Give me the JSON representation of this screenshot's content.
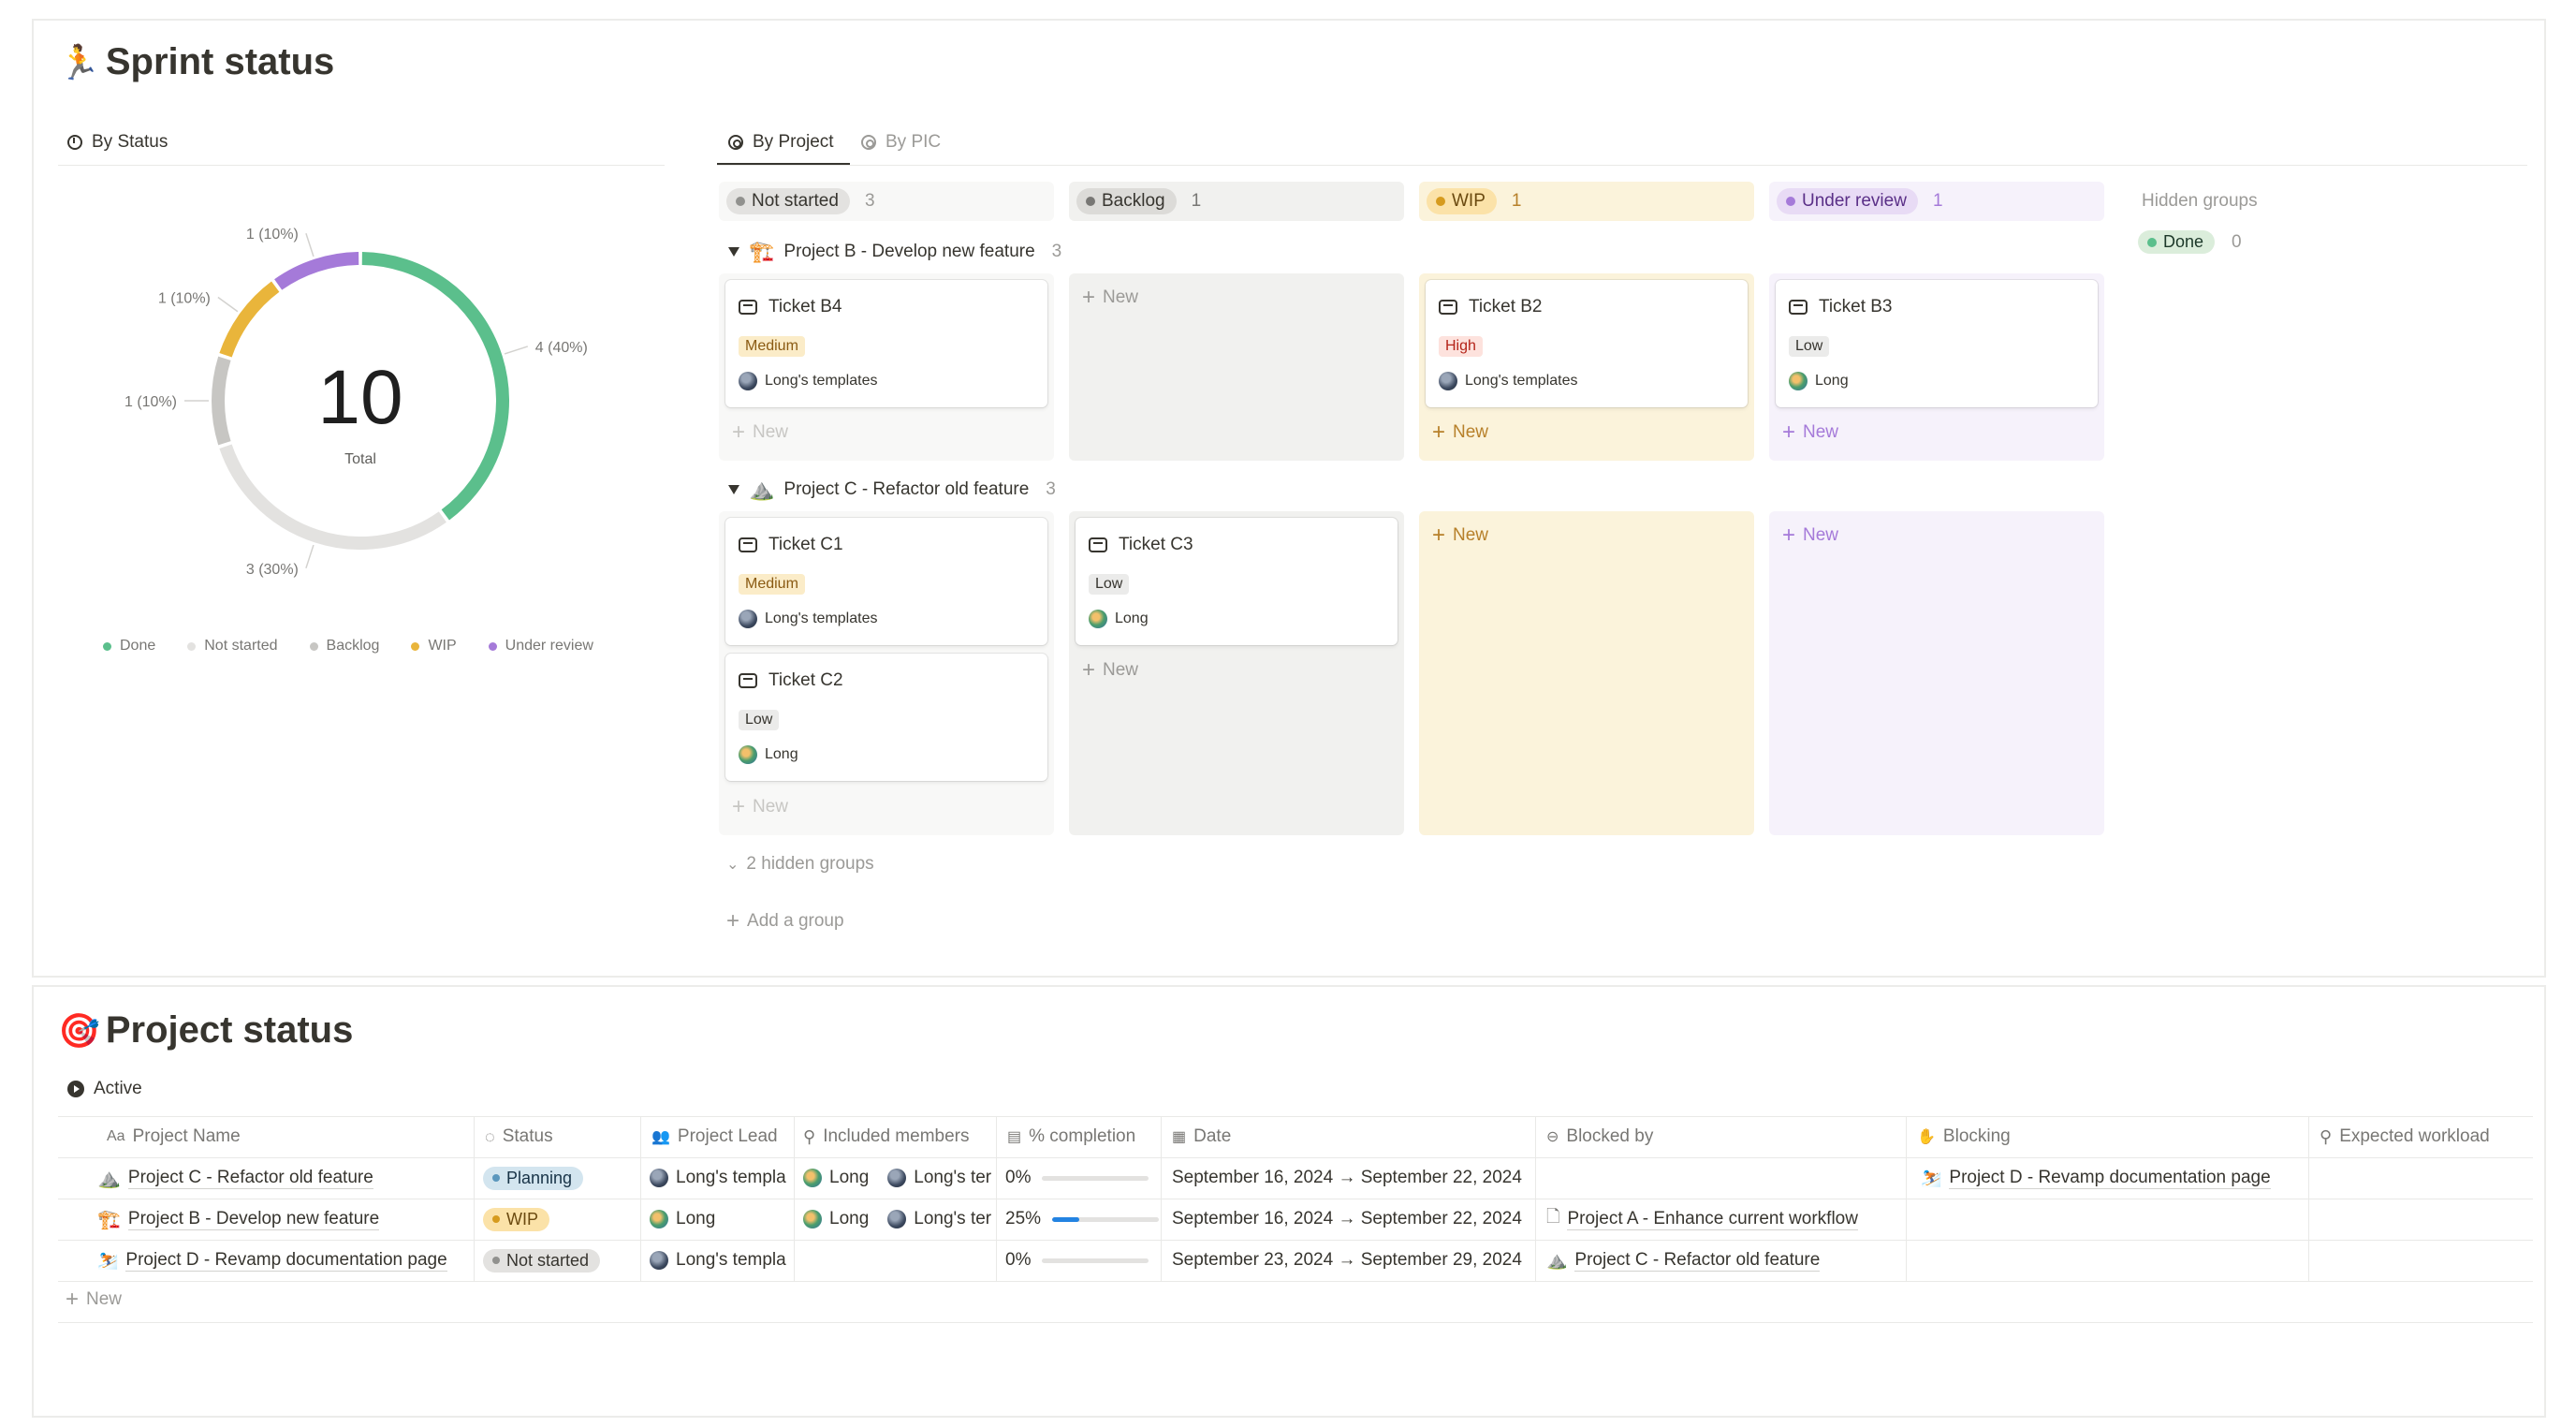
{
  "sprint": {
    "title": "Sprint status",
    "title_icon": "runner-emoji",
    "chart_tab": "By Status",
    "tabs": [
      "By Project",
      "By PIC"
    ],
    "chart": {
      "center_value": "10",
      "center_label": "Total",
      "labels": [
        "4 (40%)",
        "3 (30%)",
        "1 (10%)",
        "1 (10%)",
        "1 (10%)"
      ],
      "legend": [
        "Done",
        "Not started",
        "Backlog",
        "WIP",
        "Under review"
      ]
    },
    "columns": [
      {
        "name": "Not started",
        "count": "3"
      },
      {
        "name": "Backlog",
        "count": "1"
      },
      {
        "name": "WIP",
        "count": "1"
      },
      {
        "name": "Under review",
        "count": "1"
      }
    ],
    "hidden_groups_label": "Hidden groups",
    "hidden_group": {
      "name": "Done",
      "count": "0"
    },
    "groups": [
      {
        "name": "Project B - Develop new feature",
        "count": "3"
      },
      {
        "name": "Project C - Refactor old feature",
        "count": "3"
      }
    ],
    "cards": {
      "b4": {
        "title": "Ticket B4",
        "priority": "Medium",
        "owner": "Long's templates"
      },
      "b2": {
        "title": "Ticket B2",
        "priority": "High",
        "owner": "Long's templates"
      },
      "b3": {
        "title": "Ticket B3",
        "priority": "Low",
        "owner": "Long"
      },
      "c1": {
        "title": "Ticket C1",
        "priority": "Medium",
        "owner": "Long's templates"
      },
      "c3": {
        "title": "Ticket C3",
        "priority": "Low",
        "owner": "Long"
      },
      "c2": {
        "title": "Ticket C2",
        "priority": "Low",
        "owner": "Long"
      }
    },
    "new_label": "New",
    "hidden_groups_toggle": "2 hidden groups",
    "add_group": "Add a group"
  },
  "projects": {
    "title": "Project status",
    "title_icon": "target-emoji",
    "view_label": "Active",
    "headers": [
      "Project Name",
      "Status",
      "Project Lead",
      "Included members",
      "% completion",
      "Date",
      "Blocked by",
      "Blocking",
      "Expected workload"
    ],
    "header_prefix": "Aa",
    "rows": [
      {
        "name": "Project C - Refactor old feature",
        "status": "Planning",
        "lead": "Long's templa",
        "members": [
          "Long",
          "Long's ter"
        ],
        "completion": "0%",
        "completion_value": 0.0,
        "date": "September 16, 2024 → September 22, 2024",
        "blocked_by": "",
        "blocking": "Project D - Revamp documentation page"
      },
      {
        "name": "Project B - Develop new feature",
        "status": "WIP",
        "lead": "Long",
        "members": [
          "Long",
          "Long's ter"
        ],
        "completion": "25%",
        "completion_value": 0.25,
        "date": "September 16, 2024 → September 22, 2024",
        "blocked_by": "Project A - Enhance current workflow",
        "blocking": ""
      },
      {
        "name": "Project D - Revamp documentation page",
        "status": "Not started",
        "lead": "Long's templa",
        "members": [],
        "completion": "0%",
        "completion_value": 0.0,
        "date": "September 23, 2024 → September 29, 2024",
        "blocked_by": "Project C - Refactor old feature",
        "blocking": ""
      }
    ],
    "new_label": "New"
  },
  "colors": {
    "done": "#5bbf8c",
    "not_started": "#e3e2e0",
    "backlog": "#c7c6c3",
    "wip": "#e9b53b",
    "under_review": "#a57ad9"
  },
  "chart_data": {
    "type": "pie",
    "categories": [
      "Done",
      "Not started",
      "Backlog",
      "WIP",
      "Under review"
    ],
    "values": [
      4,
      3,
      1,
      1,
      1
    ],
    "total": 10,
    "legend_position": "bottom"
  }
}
